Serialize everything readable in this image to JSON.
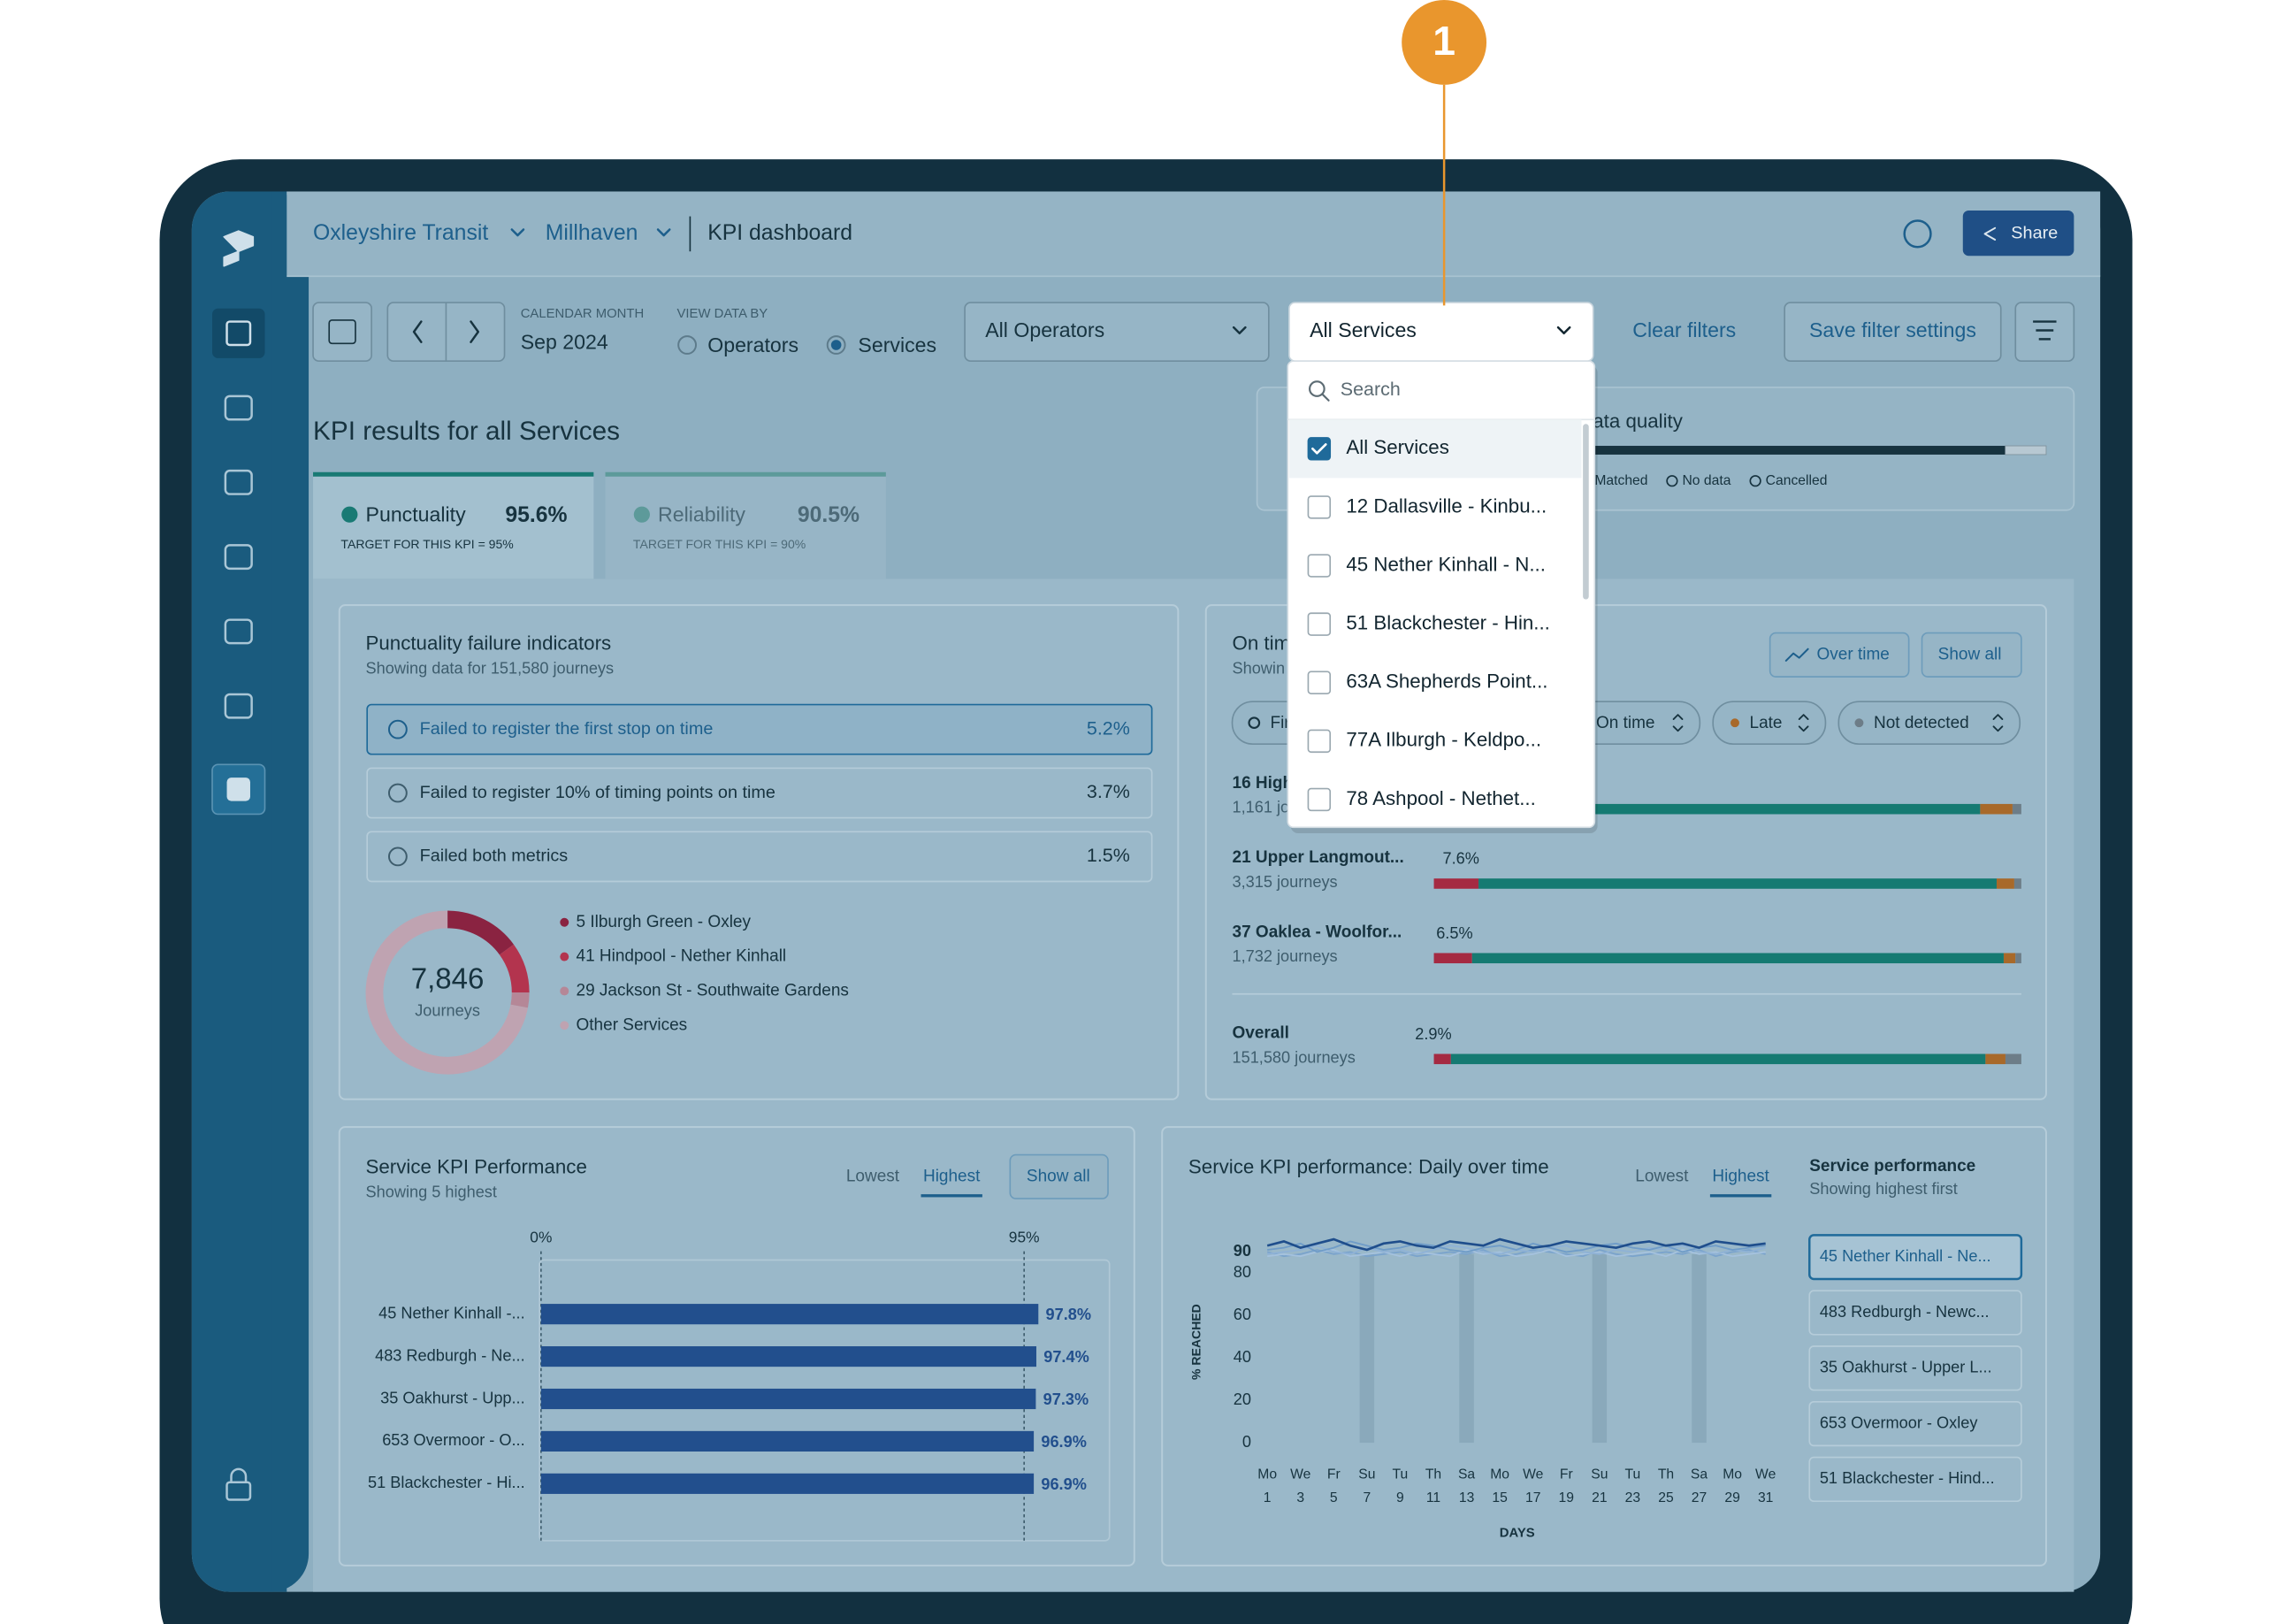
{
  "callout": "1",
  "header": {
    "breadcrumbs": [
      "Oxleyshire Transit",
      "Millhaven",
      "KPI dashboard"
    ],
    "share": "Share"
  },
  "filters": {
    "calendar_label": "CALENDAR MONTH",
    "month": "Sep 2024",
    "view_label": "VIEW DATA BY",
    "view_options": [
      "Operators",
      "Services"
    ],
    "view_selected": 1,
    "operators": "All Operators",
    "services": "All Services",
    "clear": "Clear filters",
    "save": "Save filter settings"
  },
  "dropdown": {
    "search": "Search",
    "options": [
      {
        "label": "All Services",
        "checked": true
      },
      {
        "label": "12 Dallasville - Kinbu...",
        "checked": false
      },
      {
        "label": "45 Nether Kinhall - N...",
        "checked": false
      },
      {
        "label": "51 Blackchester - Hin...",
        "checked": false
      },
      {
        "label": "63A Shepherds Point...",
        "checked": false
      },
      {
        "label": "77A Ilburgh - Keldpo...",
        "checked": false
      },
      {
        "label": "78 Ashpool - Nethet...",
        "checked": false
      }
    ]
  },
  "kpi": {
    "title": "KPI results for all Services",
    "tabs": [
      {
        "name": "Punctuality",
        "value": "95.6%",
        "target": "TARGET FOR THIS KPI = 95%",
        "active": true
      },
      {
        "name": "Reliability",
        "value": "90.5%",
        "target": "TARGET FOR THIS KPI = 90%",
        "active": false
      }
    ]
  },
  "data_quality": {
    "title": "Data quality",
    "legend": [
      "Matched",
      "No data",
      "Cancelled"
    ]
  },
  "failure_indicators": {
    "title": "Punctuality failure indicators",
    "subtitle": "Showing data for 151,580 journeys",
    "rows": [
      {
        "label": "Failed to register the first stop on time",
        "value": "5.2%",
        "active": true
      },
      {
        "label": "Failed to register 10% of timing points on time",
        "value": "3.7%",
        "active": false
      },
      {
        "label": "Failed both metrics",
        "value": "1.5%",
        "active": false
      }
    ],
    "donut": {
      "total": "7,846",
      "unit": "Journeys",
      "segments": [
        {
          "name": "5 Ilburgh Green - Oxley",
          "value": 15,
          "color": "#8a2341"
        },
        {
          "name": "41 Hindpool - Nether Kinhall",
          "value": 10,
          "color": "#b3344e"
        },
        {
          "name": "29 Jackson St - Southwaite Gardens",
          "value": 3,
          "color": "#b58797"
        },
        {
          "name": "Other Services",
          "value": 72,
          "color": "#bfa3b1"
        }
      ]
    }
  },
  "on_time": {
    "title": "On tim",
    "subtitle": "Showin",
    "buttons": [
      "Over time",
      "Show all"
    ],
    "chips": [
      {
        "label": "Fir"
      },
      {
        "label": "On time"
      },
      {
        "label": "Late",
        "color": "#a8692a"
      },
      {
        "label": "Not detected",
        "color": "#6d7d88"
      }
    ],
    "segment_colors": [
      "#a52a42",
      "#157a72",
      "#a8692a",
      "#6d7d88"
    ],
    "rows": [
      {
        "name": "16 High",
        "journeys": "1,161 jou",
        "segments": [
          8.0,
          85.0,
          5.5,
          1.5
        ]
      },
      {
        "name": "21 Upper Langmout...",
        "journeys": "3,315 journeys",
        "value_label": "7.6%",
        "segments": [
          7.6,
          88.2,
          3.0,
          1.2
        ]
      },
      {
        "name": "37 Oaklea - Woolfor...",
        "journeys": "1,732 journeys",
        "value_label": "6.5%",
        "segments": [
          6.5,
          90.5,
          2.0,
          1.0
        ]
      },
      {
        "name": "Overall",
        "journeys": "151,580 journeys",
        "value_label": "2.9%",
        "segments": [
          2.9,
          91.0,
          3.4,
          2.7
        ]
      }
    ]
  },
  "service_kpi": {
    "title": "Service KPI Performance",
    "subtitle": "Showing 5 highest",
    "tabs": [
      "Lowest",
      "Highest"
    ],
    "active_tab": 1,
    "show_all": "Show all",
    "xlim": [
      0,
      100
    ],
    "xticks": [
      {
        "value": 0,
        "label": "0%"
      },
      {
        "value": 95,
        "label": "95%"
      }
    ],
    "categories": [
      "45 Nether Kinhall -...",
      "483 Redburgh - Ne...",
      "35 Oakhurst - Upp...",
      "653 Overmoor - O...",
      "51 Blackchester - Hi..."
    ],
    "values": [
      97.8,
      97.4,
      97.3,
      96.9,
      96.9
    ],
    "value_labels": [
      "97.8%",
      "97.4%",
      "97.3%",
      "96.9%",
      "96.9%"
    ],
    "color": "#224f8d"
  },
  "daily": {
    "title": "Service KPI performance: Daily over time",
    "tabs": [
      "Lowest",
      "Highest"
    ],
    "active_tab": 1,
    "ylabel": "% REACHED",
    "xlabel": "DAYS",
    "ylim": [
      0,
      100
    ],
    "yticks": [
      0,
      20,
      40,
      60,
      80,
      90
    ],
    "xlim": [
      1,
      31
    ],
    "xticks": [
      1,
      3,
      5,
      7,
      9,
      11,
      13,
      15,
      17,
      19,
      21,
      23,
      25,
      27,
      29,
      31
    ],
    "xtick_weekdays": [
      "Mo",
      "We",
      "Fr",
      "Su",
      "Tu",
      "Th",
      "Sa",
      "Mo",
      "We",
      "Fr",
      "Su",
      "Tu",
      "Th",
      "Sa",
      "Mo",
      "We"
    ],
    "x": [
      1,
      2,
      3,
      4,
      5,
      6,
      7,
      8,
      9,
      10,
      11,
      12,
      13,
      14,
      15,
      16,
      17,
      18,
      19,
      20,
      21,
      22,
      23,
      24,
      25,
      26,
      27,
      28,
      29,
      30,
      31
    ],
    "panel_title": "Service performance",
    "panel_subtitle": "Showing highest first",
    "selected": 0,
    "series": [
      {
        "name": "45 Nether Kinhall - Ne...",
        "color": "#1f4e8c",
        "values": [
          93,
          95,
          92,
          94,
          96,
          93,
          91,
          94,
          95,
          93,
          92,
          95,
          94,
          93,
          96,
          94,
          92,
          93,
          95,
          94,
          93,
          92,
          94,
          95,
          93,
          94,
          92,
          95,
          94,
          93,
          94
        ]
      },
      {
        "name": "483 Redburgh - Newc...",
        "color": "#6f9cc8",
        "values": [
          91,
          92,
          94,
          90,
          92,
          95,
          93,
          91,
          92,
          94,
          93,
          91,
          90,
          92,
          93,
          91,
          94,
          92,
          90,
          91,
          93,
          94,
          92,
          91,
          93,
          90,
          92,
          93,
          91,
          92,
          93
        ]
      },
      {
        "name": "35 Oakhurst - Upper L...",
        "color": "#8fb2d6",
        "values": [
          89,
          90,
          91,
          93,
          90,
          89,
          92,
          90,
          91,
          89,
          91,
          93,
          92,
          90,
          89,
          91,
          90,
          92,
          93,
          90,
          89,
          91,
          90,
          92,
          91,
          93,
          90,
          89,
          91,
          90,
          92
        ]
      },
      {
        "name": "653 Overmoor - Oxley",
        "color": "#a5c2de",
        "values": [
          88,
          89,
          88,
          90,
          91,
          88,
          89,
          90,
          88,
          90,
          89,
          88,
          91,
          89,
          90,
          88,
          89,
          91,
          88,
          89,
          90,
          88,
          89,
          90,
          88,
          91,
          89,
          90,
          88,
          89,
          90
        ]
      },
      {
        "name": "51 Blackchester - Hind...",
        "color": "#7aa3cc",
        "values": [
          90,
          88,
          89,
          91,
          89,
          90,
          88,
          89,
          90,
          88,
          89,
          90,
          89,
          91,
          88,
          89,
          91,
          90,
          89,
          88,
          91,
          89,
          88,
          89,
          90,
          89,
          91,
          88,
          90,
          91,
          89
        ]
      }
    ]
  }
}
